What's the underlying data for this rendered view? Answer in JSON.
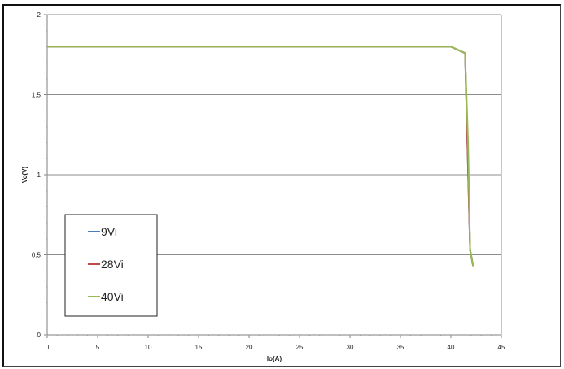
{
  "chart_data": {
    "type": "line",
    "title": "",
    "xlabel": "Io(A)",
    "ylabel": "Vo(V)",
    "xlim": [
      0,
      45
    ],
    "ylim": [
      0,
      2
    ],
    "xticks": [
      0,
      5,
      10,
      15,
      20,
      25,
      30,
      35,
      40,
      45
    ],
    "yticks": [
      0,
      0.5,
      1,
      1.5,
      2
    ],
    "ytick_labels": [
      "0",
      "0.5",
      "1",
      "1.5",
      "2"
    ],
    "grid": "horizontal",
    "legend_position": "bottom-left",
    "series": [
      {
        "name": "9Vi",
        "color": "#4a7ebb",
        "x": [
          0,
          40,
          41.4,
          41.6,
          41.9,
          42.2
        ],
        "y": [
          1.8,
          1.8,
          1.76,
          1.3,
          0.53,
          0.43
        ]
      },
      {
        "name": "28Vi",
        "color": "#be4b48",
        "x": [
          0,
          40,
          41.4,
          41.6,
          41.9,
          42.2
        ],
        "y": [
          1.8,
          1.8,
          1.76,
          1.3,
          0.53,
          0.43
        ]
      },
      {
        "name": "40Vi",
        "color": "#98b954",
        "x": [
          0,
          40,
          41.4,
          41.7,
          41.9,
          42.2
        ],
        "y": [
          1.8,
          1.8,
          1.76,
          1.2,
          0.53,
          0.43
        ]
      }
    ]
  }
}
